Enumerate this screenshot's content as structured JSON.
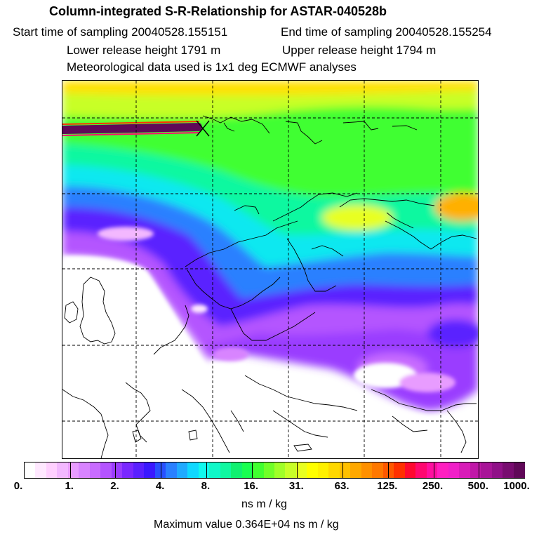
{
  "header": {
    "title": "Column-integrated S-R-Relationship for ASTAR-040528b",
    "start_time": "Start time of sampling 20040528.155151",
    "end_time": "End time of sampling 20040528.155254",
    "lower_release": "Lower release height 1791 m",
    "upper_release": "Upper release height 1794 m",
    "meteo": "Meteorological data used is 1x1 deg ECMWF analyses"
  },
  "colorbar": {
    "labels": [
      "0.",
      "1.",
      "2.",
      "4.",
      "8.",
      "16.",
      "31.",
      "63.",
      "125.",
      "250.",
      "500.",
      "1000."
    ],
    "colors": [
      "#ffffff",
      "#ffe8ff",
      "#ffd0ff",
      "#f3b8ff",
      "#e89cff",
      "#d884ff",
      "#c86cff",
      "#b454ff",
      "#9a3cff",
      "#7a28ff",
      "#5a20ff",
      "#3a18ff",
      "#2850ff",
      "#2a80ff",
      "#20aaff",
      "#10d8ff",
      "#10f8ee",
      "#10f8c8",
      "#10f8a0",
      "#10f070",
      "#18ff50",
      "#40ff30",
      "#70ff28",
      "#a0ff28",
      "#c8ff28",
      "#e8ff20",
      "#ffff00",
      "#fff000",
      "#ffd800",
      "#ffc000",
      "#ffa800",
      "#ff9000",
      "#ff7800",
      "#ff5800",
      "#ff3000",
      "#ff0830",
      "#ff0870",
      "#ff10a0",
      "#ff20c0",
      "#f020c8",
      "#d81cb8",
      "#c018a8",
      "#a81498",
      "#901088",
      "#780c70",
      "#600858"
    ],
    "unit": "ns m / kg",
    "max_value": "Maximum value  0.364E+04 ns m / kg"
  },
  "map": {
    "release_marker": "x-marker"
  }
}
